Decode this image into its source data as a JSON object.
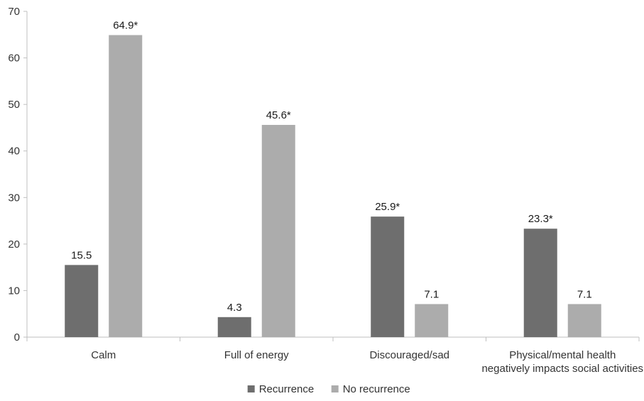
{
  "chart_data": {
    "type": "bar",
    "title": "",
    "xlabel": "",
    "ylabel": "",
    "ylim": [
      0,
      70
    ],
    "yticks": [
      "0",
      "10",
      "20",
      "30",
      "40",
      "50",
      "60",
      "70"
    ],
    "categories": [
      [
        "Calm"
      ],
      [
        "Full of energy"
      ],
      [
        "Discouraged/sad"
      ],
      [
        "Physical/mental health",
        "negatively impacts social activities"
      ]
    ],
    "series": [
      {
        "name": "Recurrence",
        "color": "#6e6e6e",
        "values": [
          15.5,
          4.3,
          25.9,
          23.3
        ],
        "labels": [
          "15.5",
          "4.3",
          "25.9*",
          "23.3*"
        ]
      },
      {
        "name": "No recurrence",
        "color": "#acacac",
        "values": [
          64.9,
          45.6,
          7.1,
          7.1
        ],
        "labels": [
          "64.9*",
          "45.6*",
          "7.1",
          "7.1"
        ]
      }
    ],
    "grid": false,
    "legend_position": "bottom"
  }
}
